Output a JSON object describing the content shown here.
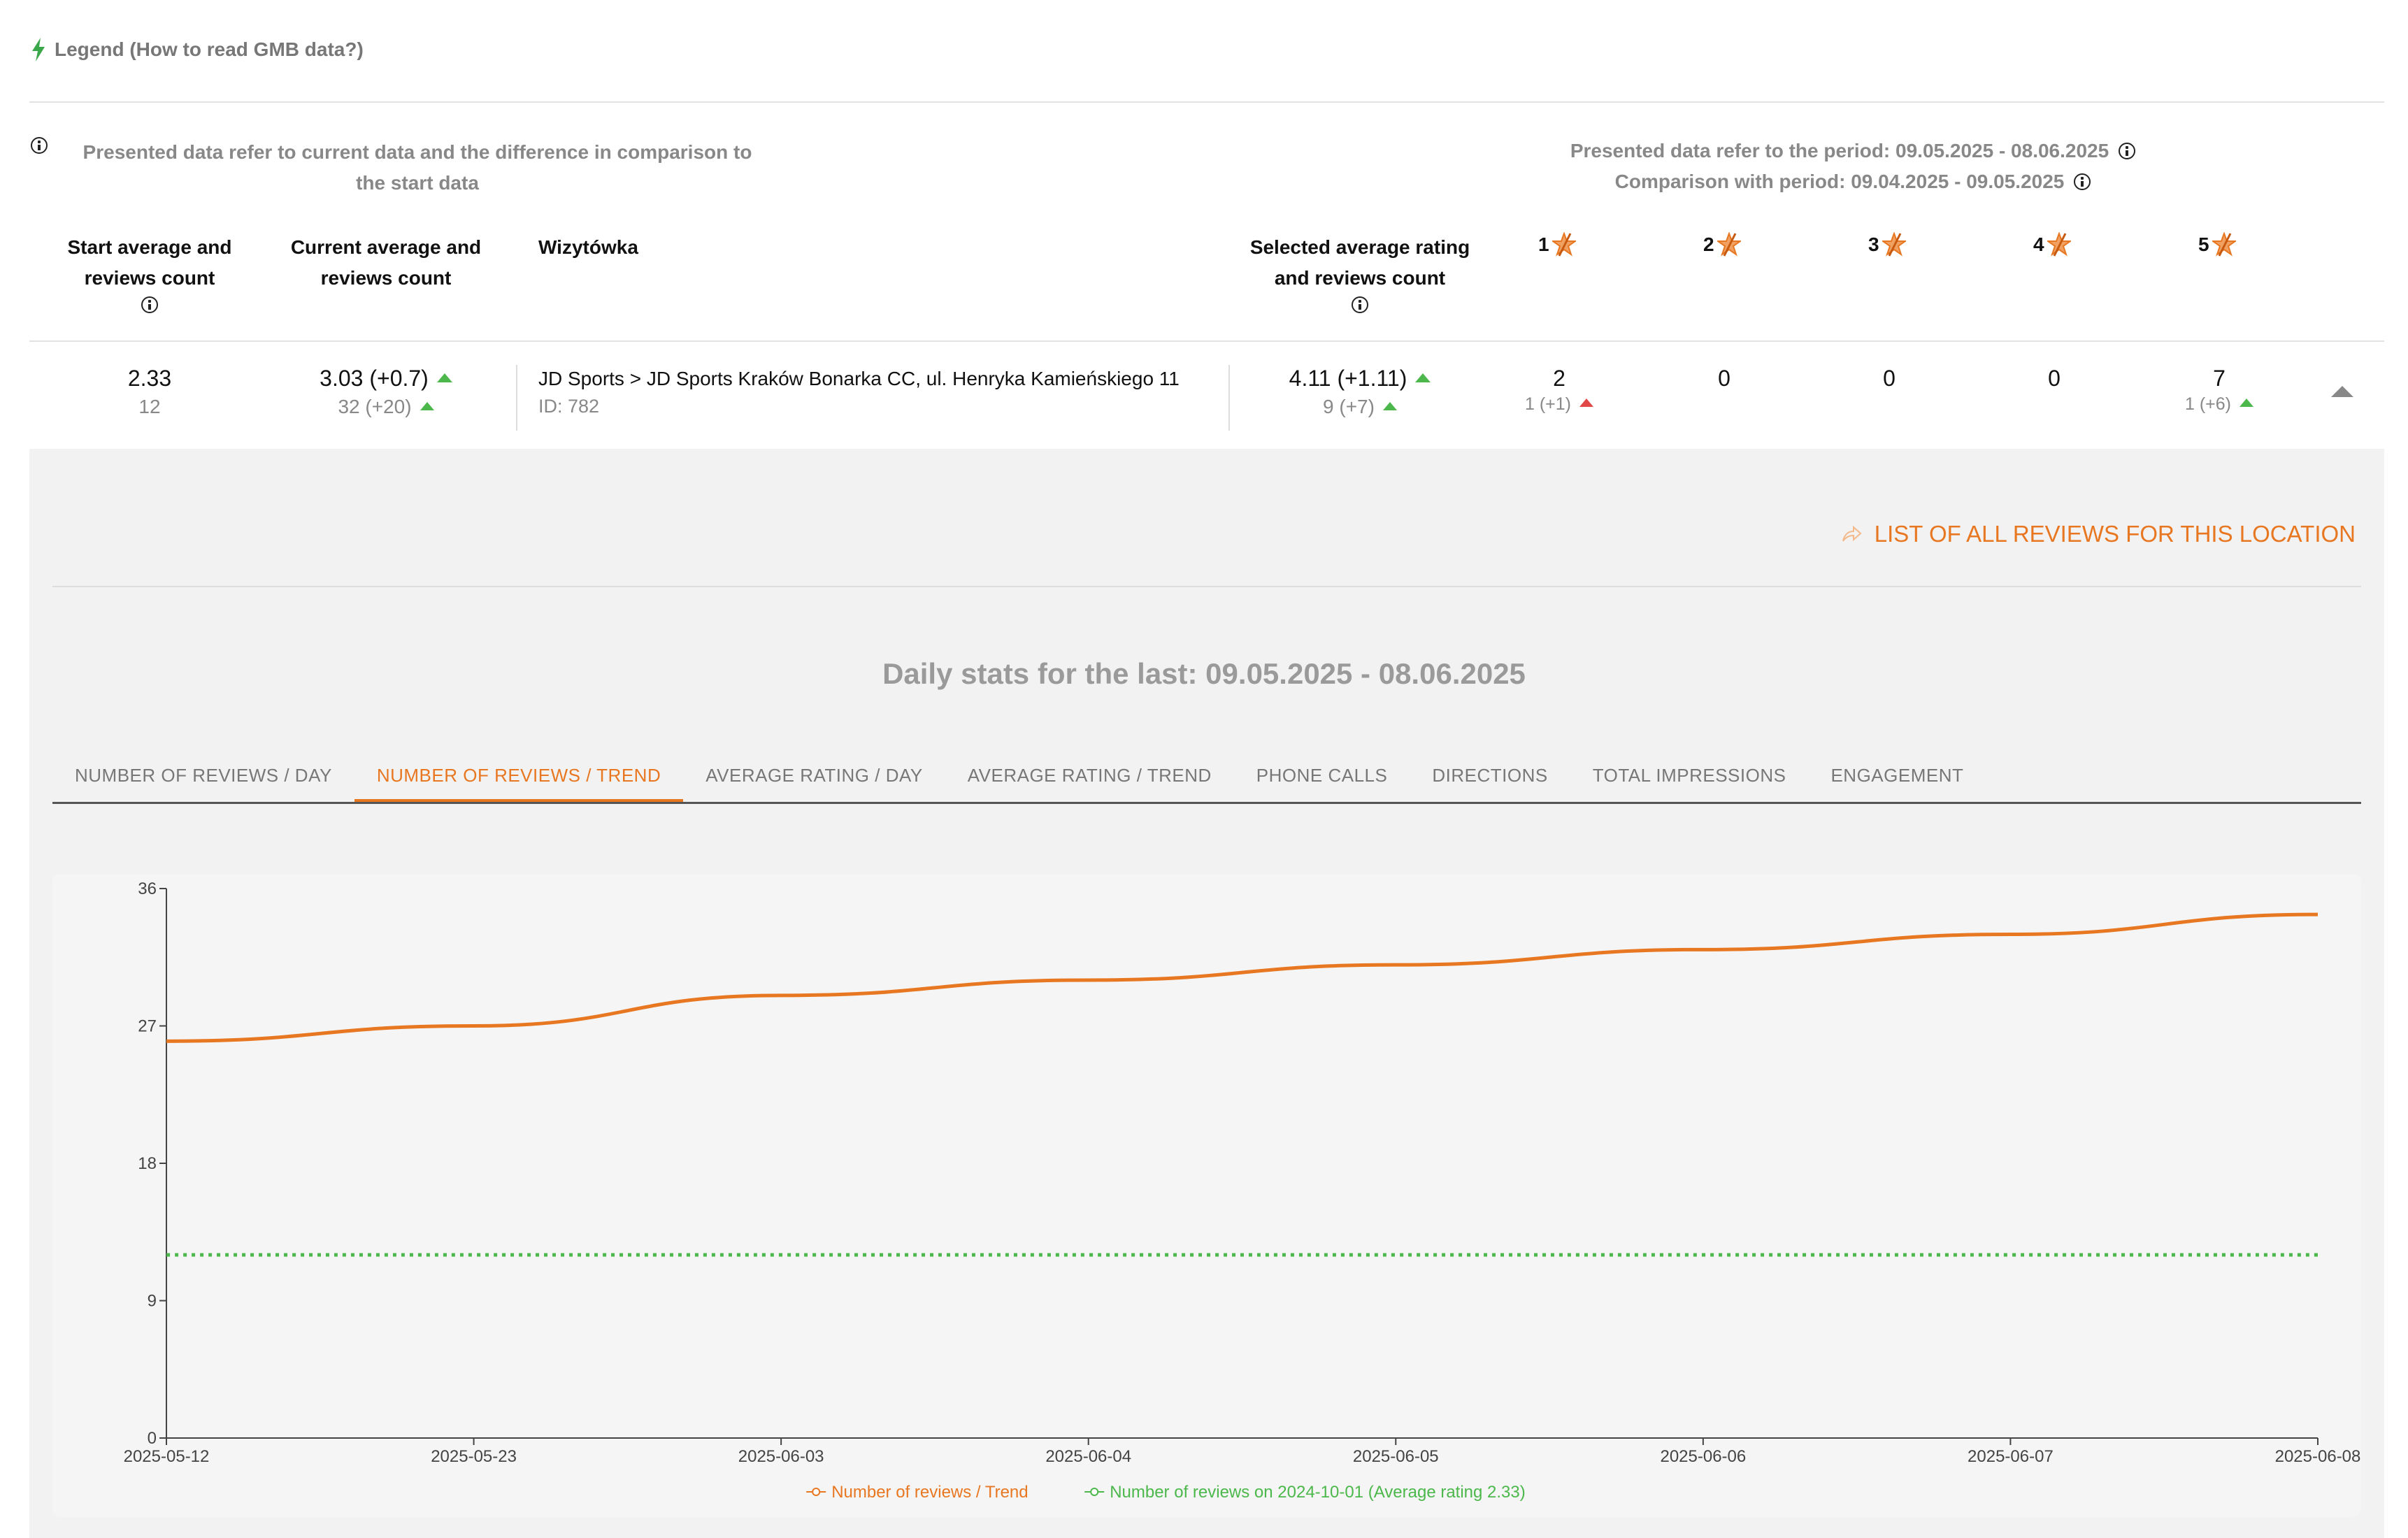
{
  "legend_link": "Legend (How to read GMB data?)",
  "notes": {
    "left": "Presented data refer to current data and the difference in comparison to the start data",
    "period": "Presented data refer to the period: 09.05.2025 - 08.06.2025",
    "comparison": "Comparison with period: 09.04.2025 - 09.05.2025"
  },
  "headers": {
    "start": "Start average and reviews count",
    "current": "Current average and reviews count",
    "business": "Wizytówka",
    "selected": "Selected average rating and reviews count",
    "stars": [
      "1",
      "2",
      "3",
      "4",
      "5"
    ]
  },
  "row": {
    "start_avg": "2.33",
    "start_count": "12",
    "current_avg": "3.03 (+0.7)",
    "current_count": "32 (+20)",
    "location_name": "JD Sports > JD Sports Kraków Bonarka CC, ul. Henryka Kamieńskiego 11",
    "location_id": "ID: 782",
    "selected_avg": "4.11 (+1.11)",
    "selected_count": "9 (+7)",
    "star1_main": "2",
    "star1_sub": "1 (+1)",
    "star2_main": "0",
    "star3_main": "0",
    "star4_main": "0",
    "star5_main": "7",
    "star5_sub": "1 (+6)"
  },
  "list_link": "LIST OF ALL REVIEWS FOR THIS LOCATION",
  "daily_title": "Daily stats for the last: 09.05.2025 - 08.06.2025",
  "tabs": [
    "NUMBER OF REVIEWS / DAY",
    "NUMBER OF REVIEWS / TREND",
    "AVERAGE RATING / DAY",
    "AVERAGE RATING / TREND",
    "PHONE CALLS",
    "DIRECTIONS",
    "TOTAL IMPRESSIONS",
    "ENGAGEMENT"
  ],
  "active_tab": 1,
  "colors": {
    "accent": "#e87722",
    "green": "#4cb84c",
    "red": "#e24848"
  },
  "chart_data": {
    "type": "line",
    "x": [
      "2025-05-12",
      "2025-05-23",
      "2025-06-03",
      "2025-06-04",
      "2025-06-05",
      "2025-06-06",
      "2025-06-07",
      "2025-06-08"
    ],
    "y_ticks": [
      0,
      9,
      18,
      27,
      36
    ],
    "ylim": [
      0,
      36
    ],
    "series": [
      {
        "name": "Number of reviews / Trend",
        "color": "#e87722",
        "style": "solid",
        "values": [
          26,
          27,
          29,
          30,
          31,
          32,
          33,
          34.3
        ]
      },
      {
        "name": "Number of reviews on 2024-10-01 (Average rating 2.33)",
        "color": "#4cb84c",
        "style": "dotted",
        "values": [
          12,
          12,
          12,
          12,
          12,
          12,
          12,
          12
        ]
      }
    ],
    "legend_position": "bottom-center",
    "grid": false
  }
}
